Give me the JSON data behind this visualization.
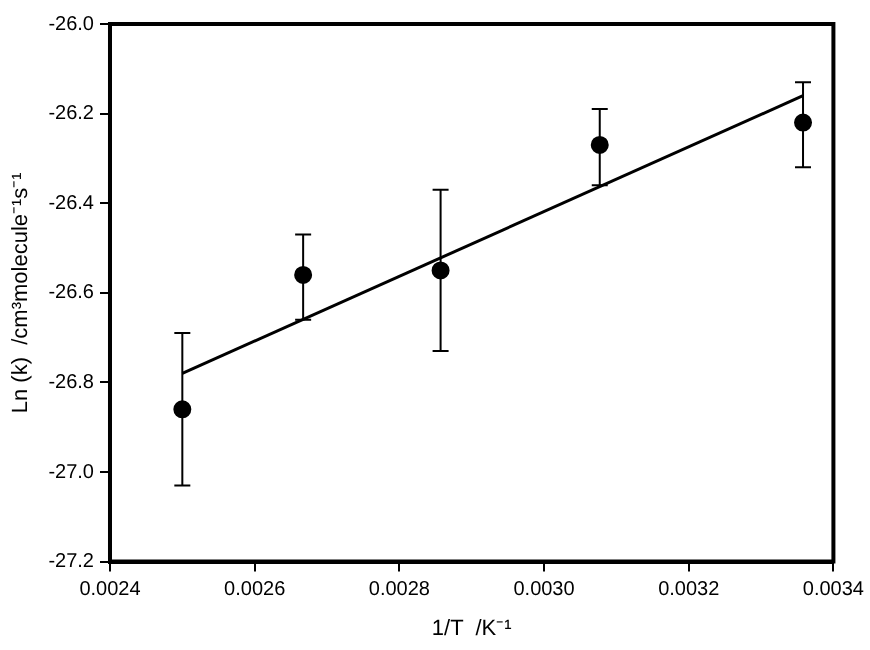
{
  "chart_data": {
    "type": "scatter",
    "xlabel": "1/T  /K⁻¹",
    "ylabel": "Ln (k)  /cm³molecule⁻¹s⁻¹",
    "xlim": [
      0.0024,
      0.0034
    ],
    "xticks": [
      0.0024,
      0.0026,
      0.0028,
      {
        "value": 0.003,
        "label": "0.0030"
      },
      0.0032,
      0.0034
    ],
    "ylim": [
      -27.2,
      -26.0
    ],
    "yticks": [
      -27.2,
      {
        "value": -27.0,
        "label": "-27.0"
      },
      -26.8,
      -26.6,
      -26.4,
      -26.2,
      {
        "value": -26.0,
        "label": "-26.0"
      }
    ],
    "grid": false,
    "legend": false,
    "series": [
      {
        "type": "scatter",
        "marker": "circle",
        "color": "#000000",
        "x": [
          0.0025,
          0.002667,
          0.002857,
          0.003077,
          0.003358
        ],
        "values": [
          -26.86,
          -26.56,
          -26.55,
          -26.27,
          -26.22
        ],
        "errors": [
          [
            -27.03,
            -26.69
          ],
          [
            -26.66,
            -26.47
          ],
          [
            -26.73,
            -26.37
          ],
          [
            -26.36,
            -26.19
          ],
          [
            -26.32,
            -26.13
          ]
        ]
      },
      {
        "type": "line",
        "marker": "none",
        "color": "#000000",
        "x": [
          0.0025,
          0.003358
        ],
        "values": [
          -26.78,
          -26.16
        ]
      }
    ]
  }
}
